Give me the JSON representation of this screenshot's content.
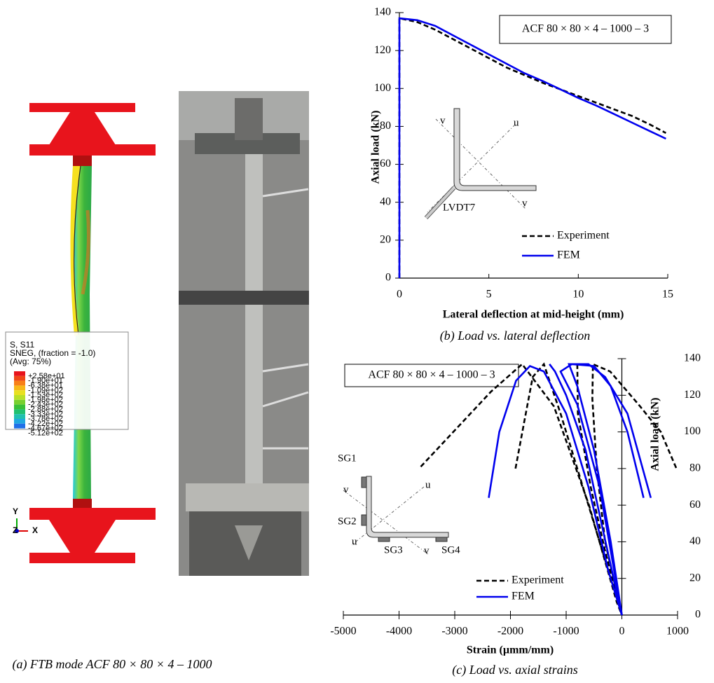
{
  "panel_a": {
    "contour_legend": [
      "S, S11",
      "SNEG, (fraction = -1.0)",
      "(Avg: 75%)"
    ],
    "contour_values": [
      "+2.58e+01",
      "-1.90e+01",
      "-6.38e+01",
      "-1.09e+02",
      "-1.53e+02",
      "-1.98e+02",
      "-2.43e+02",
      "-2.88e+02",
      "-3.33e+02",
      "-3.78e+02",
      "-4.22e+02",
      "-4.67e+02",
      "-5.12e+02"
    ],
    "triad": [
      "Y",
      "Z",
      "X"
    ],
    "caption": "(a) FTB mode ACF 80 × 80 × 4 – 1000"
  },
  "chart_data": [
    {
      "type": "line",
      "caption": "(b) Load vs. lateral deflection",
      "annotation": "ACF 80 × 80 × 4 – 1000 – 3",
      "xlabel": "Lateral deflection at mid-height  (mm)",
      "ylabel": "Axial load (kN)",
      "xlim": [
        0,
        15
      ],
      "xticks": [
        0,
        5,
        10,
        15
      ],
      "ylim": [
        0,
        140
      ],
      "yticks": [
        0,
        20,
        40,
        60,
        80,
        100,
        120,
        140
      ],
      "inset_labels": [
        "v",
        "u",
        "v",
        "LVDT7"
      ],
      "series": [
        {
          "name": "Experiment",
          "color": "#000000",
          "dash": true,
          "x": [
            0,
            0,
            1,
            2,
            3,
            4,
            5,
            6,
            7,
            8,
            9,
            10,
            11,
            12,
            13,
            14,
            14.9
          ],
          "values": [
            0,
            137,
            135,
            131,
            126,
            121,
            116,
            111,
            107,
            103,
            99.5,
            96,
            92.5,
            89,
            85.5,
            81,
            76.5
          ]
        },
        {
          "name": "FEM",
          "color": "#0000ee",
          "dash": false,
          "x": [
            0,
            0,
            1,
            2,
            3,
            4,
            5,
            6,
            7,
            8,
            9,
            10,
            11,
            12,
            13,
            14,
            14.9
          ],
          "values": [
            0,
            137,
            136,
            133,
            128,
            123,
            118,
            113,
            108,
            104,
            99.5,
            95,
            91,
            86.5,
            82,
            77.5,
            73.5
          ]
        }
      ]
    },
    {
      "type": "line",
      "caption": "(c) Load vs. axial strains",
      "annotation": "ACF 80 × 80 × 4 – 1000 – 3",
      "xlabel": "Strain (µmm/mm)",
      "ylabel": "Axial load (kN)",
      "xlim": [
        -5000,
        1000
      ],
      "xticks": [
        -5000,
        -4000,
        -3000,
        -2000,
        -1000,
        0,
        1000
      ],
      "ylim": [
        0,
        140
      ],
      "yticks": [
        0,
        20,
        40,
        60,
        80,
        100,
        120,
        140
      ],
      "inset_labels": [
        "SG1",
        "SG2",
        "SG3",
        "SG4",
        "v",
        "u",
        "u",
        "v"
      ],
      "series": [
        {
          "name": "Experiment",
          "color": "#000000",
          "dash": true,
          "curves": [
            {
              "x": [
                -3610,
                -2350,
                -1790,
                -1220,
                -590,
                -90,
                0
              ],
              "values": [
                81,
                122,
                137,
                114,
                60,
                7,
                0
              ]
            },
            {
              "x": [
                -1910,
                -1750,
                -1600,
                -1400,
                -1100,
                -500,
                0
              ],
              "values": [
                80,
                106,
                130,
                137,
                110,
                50,
                0
              ]
            },
            {
              "x": [
                -800,
                -790,
                -560,
                -300,
                0
              ],
              "values": [
                137,
                110,
                70,
                35,
                0
              ]
            },
            {
              "x": [
                0,
                -300,
                -450,
                -530,
                -520,
                -210,
                300,
                700,
                980
              ],
              "values": [
                0,
                40,
                80,
                118,
                137,
                133,
                115,
                100,
                80
              ]
            }
          ]
        },
        {
          "name": "FEM",
          "color": "#0000ee",
          "dash": false,
          "curves": [
            {
              "x": [
                -2390,
                -2200,
                -1900,
                -1650,
                -1400,
                -1000,
                -600,
                -250,
                0
              ],
              "values": [
                64,
                100,
                128,
                136,
                133,
                110,
                70,
                25,
                0
              ]
            },
            {
              "x": [
                0,
                -330,
                -650,
                -1000,
                -1200,
                -1300
              ],
              "values": [
                0,
                45,
                90,
                120,
                133,
                137
              ]
            },
            {
              "x": [
                0,
                -400,
                -800,
                -1100,
                -900,
                -500,
                -200,
                100,
                390
              ],
              "values": [
                0,
                70,
                115,
                133,
                137,
                136,
                125,
                100,
                64
              ]
            },
            {
              "x": [
                0,
                -200,
                -500,
                -800,
                -950,
                -600,
                -300,
                100,
                520
              ],
              "values": [
                0,
                40,
                90,
                125,
                137,
                137,
                130,
                110,
                64
              ]
            }
          ]
        }
      ]
    }
  ]
}
